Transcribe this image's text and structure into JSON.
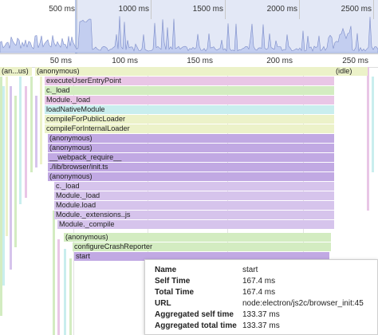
{
  "overview": {
    "ticks": [
      {
        "label": "500 ms"
      },
      {
        "label": "1000 ms"
      },
      {
        "label": "1500 ms"
      },
      {
        "label": "2000 ms"
      },
      {
        "label": "2500 ms"
      }
    ]
  },
  "ruler": {
    "ticks": [
      "50 ms",
      "100 ms",
      "150 ms",
      "200 ms",
      "250 ms"
    ]
  },
  "flame": {
    "top_left_short": "(an...us)",
    "anonymous_top": "(anonymous)",
    "idle": "(idle)",
    "frames": [
      "executeUserEntryPoint",
      "c._load",
      "Module._load",
      "loadNativeModule",
      "compileForPublicLoader",
      "compileForInternalLoader",
      "(anonymous)",
      "(anonymous)",
      "__webpack_require__",
      "./lib/browser/init.ts",
      "(anonymous)",
      "c._load",
      "Module._load",
      "Module.load",
      "Module._extensions..js",
      "Module._compile",
      "(anonymous)",
      "configureCrashReporter",
      "start"
    ]
  },
  "tooltip": {
    "rows": [
      {
        "key": "Name",
        "value": "start"
      },
      {
        "key": "Self Time",
        "value": "167.4 ms"
      },
      {
        "key": "Total Time",
        "value": "167.4 ms"
      },
      {
        "key": "URL",
        "value": "node:electron/js2c/browser_init:45"
      },
      {
        "key": "Aggregated self time",
        "value": "133.37 ms"
      },
      {
        "key": "Aggregated total time",
        "value": "133.37 ms"
      }
    ]
  },
  "colors": {
    "lavender": "#d6c4ec",
    "purple": "#c1a9e3",
    "green": "#d3ecc1",
    "cyan": "#c9eeee",
    "yellow": "#ecf2c9",
    "pink": "#e9c6e6",
    "selection": "#e3e8f6",
    "overview_fill": "#c3cef0"
  }
}
